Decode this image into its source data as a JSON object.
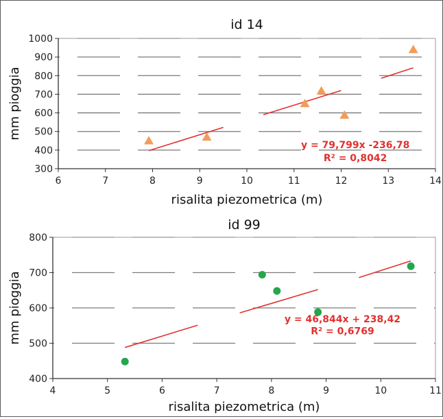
{
  "chart_data": [
    {
      "type": "scatter",
      "title": "id 14",
      "xlabel": "risalita piezometrica (m)",
      "ylabel": "mm pioggia",
      "xlim": [
        6,
        14
      ],
      "ylim": [
        300,
        1000
      ],
      "x_ticks": [
        "6",
        "7",
        "8",
        "9",
        "10",
        "11",
        "12",
        "13",
        "14"
      ],
      "y_ticks": [
        "300",
        "400",
        "500",
        "600",
        "700",
        "800",
        "900",
        "1000"
      ],
      "grid": "dashed-horizontal",
      "marker": "triangle",
      "marker_color": "#f39c5a",
      "trend_color": "#e0312f",
      "points": [
        {
          "x": 7.92,
          "y": 450
        },
        {
          "x": 9.15,
          "y": 470
        },
        {
          "x": 11.23,
          "y": 650
        },
        {
          "x": 11.58,
          "y": 718
        },
        {
          "x": 12.07,
          "y": 588
        },
        {
          "x": 13.53,
          "y": 940
        }
      ],
      "trend_segments": [
        [
          [
            7.92,
            397
          ],
          [
            9.5,
            522
          ]
        ],
        [
          [
            10.35,
            590
          ],
          [
            12.0,
            720
          ]
        ],
        [
          [
            12.85,
            786
          ],
          [
            13.53,
            842
          ]
        ]
      ],
      "annotation": {
        "equation": "y = 79,799x -236,78",
        "r2": "R² = 0,8042",
        "x": 12.3,
        "y_eq": 410,
        "y_r2": 340
      }
    },
    {
      "type": "scatter",
      "title": "id 99",
      "xlabel": "risalita piezometrica (m)",
      "ylabel": "mm pioggia",
      "xlim": [
        4,
        11
      ],
      "ylim": [
        400,
        800
      ],
      "x_ticks": [
        "4",
        "5",
        "6",
        "7",
        "8",
        "9",
        "10",
        "11"
      ],
      "y_ticks": [
        "400",
        "500",
        "600",
        "700",
        "800"
      ],
      "grid": "dashed-horizontal",
      "marker": "circle",
      "marker_color": "#22a74b",
      "trend_color": "#e0312f",
      "points": [
        {
          "x": 5.32,
          "y": 448
        },
        {
          "x": 7.83,
          "y": 694
        },
        {
          "x": 8.1,
          "y": 648
        },
        {
          "x": 8.85,
          "y": 588
        },
        {
          "x": 10.55,
          "y": 718
        }
      ],
      "trend_segments": [
        [
          [
            5.32,
            488
          ],
          [
            6.65,
            551
          ]
        ],
        [
          [
            7.42,
            586
          ],
          [
            8.85,
            652
          ]
        ],
        [
          [
            9.6,
            686
          ],
          [
            10.55,
            733
          ]
        ]
      ],
      "annotation": {
        "equation": "y = 46,844x + 238,42",
        "r2": "R² = 0,6769",
        "x": 9.3,
        "y_eq": 559,
        "y_r2": 525
      }
    }
  ]
}
